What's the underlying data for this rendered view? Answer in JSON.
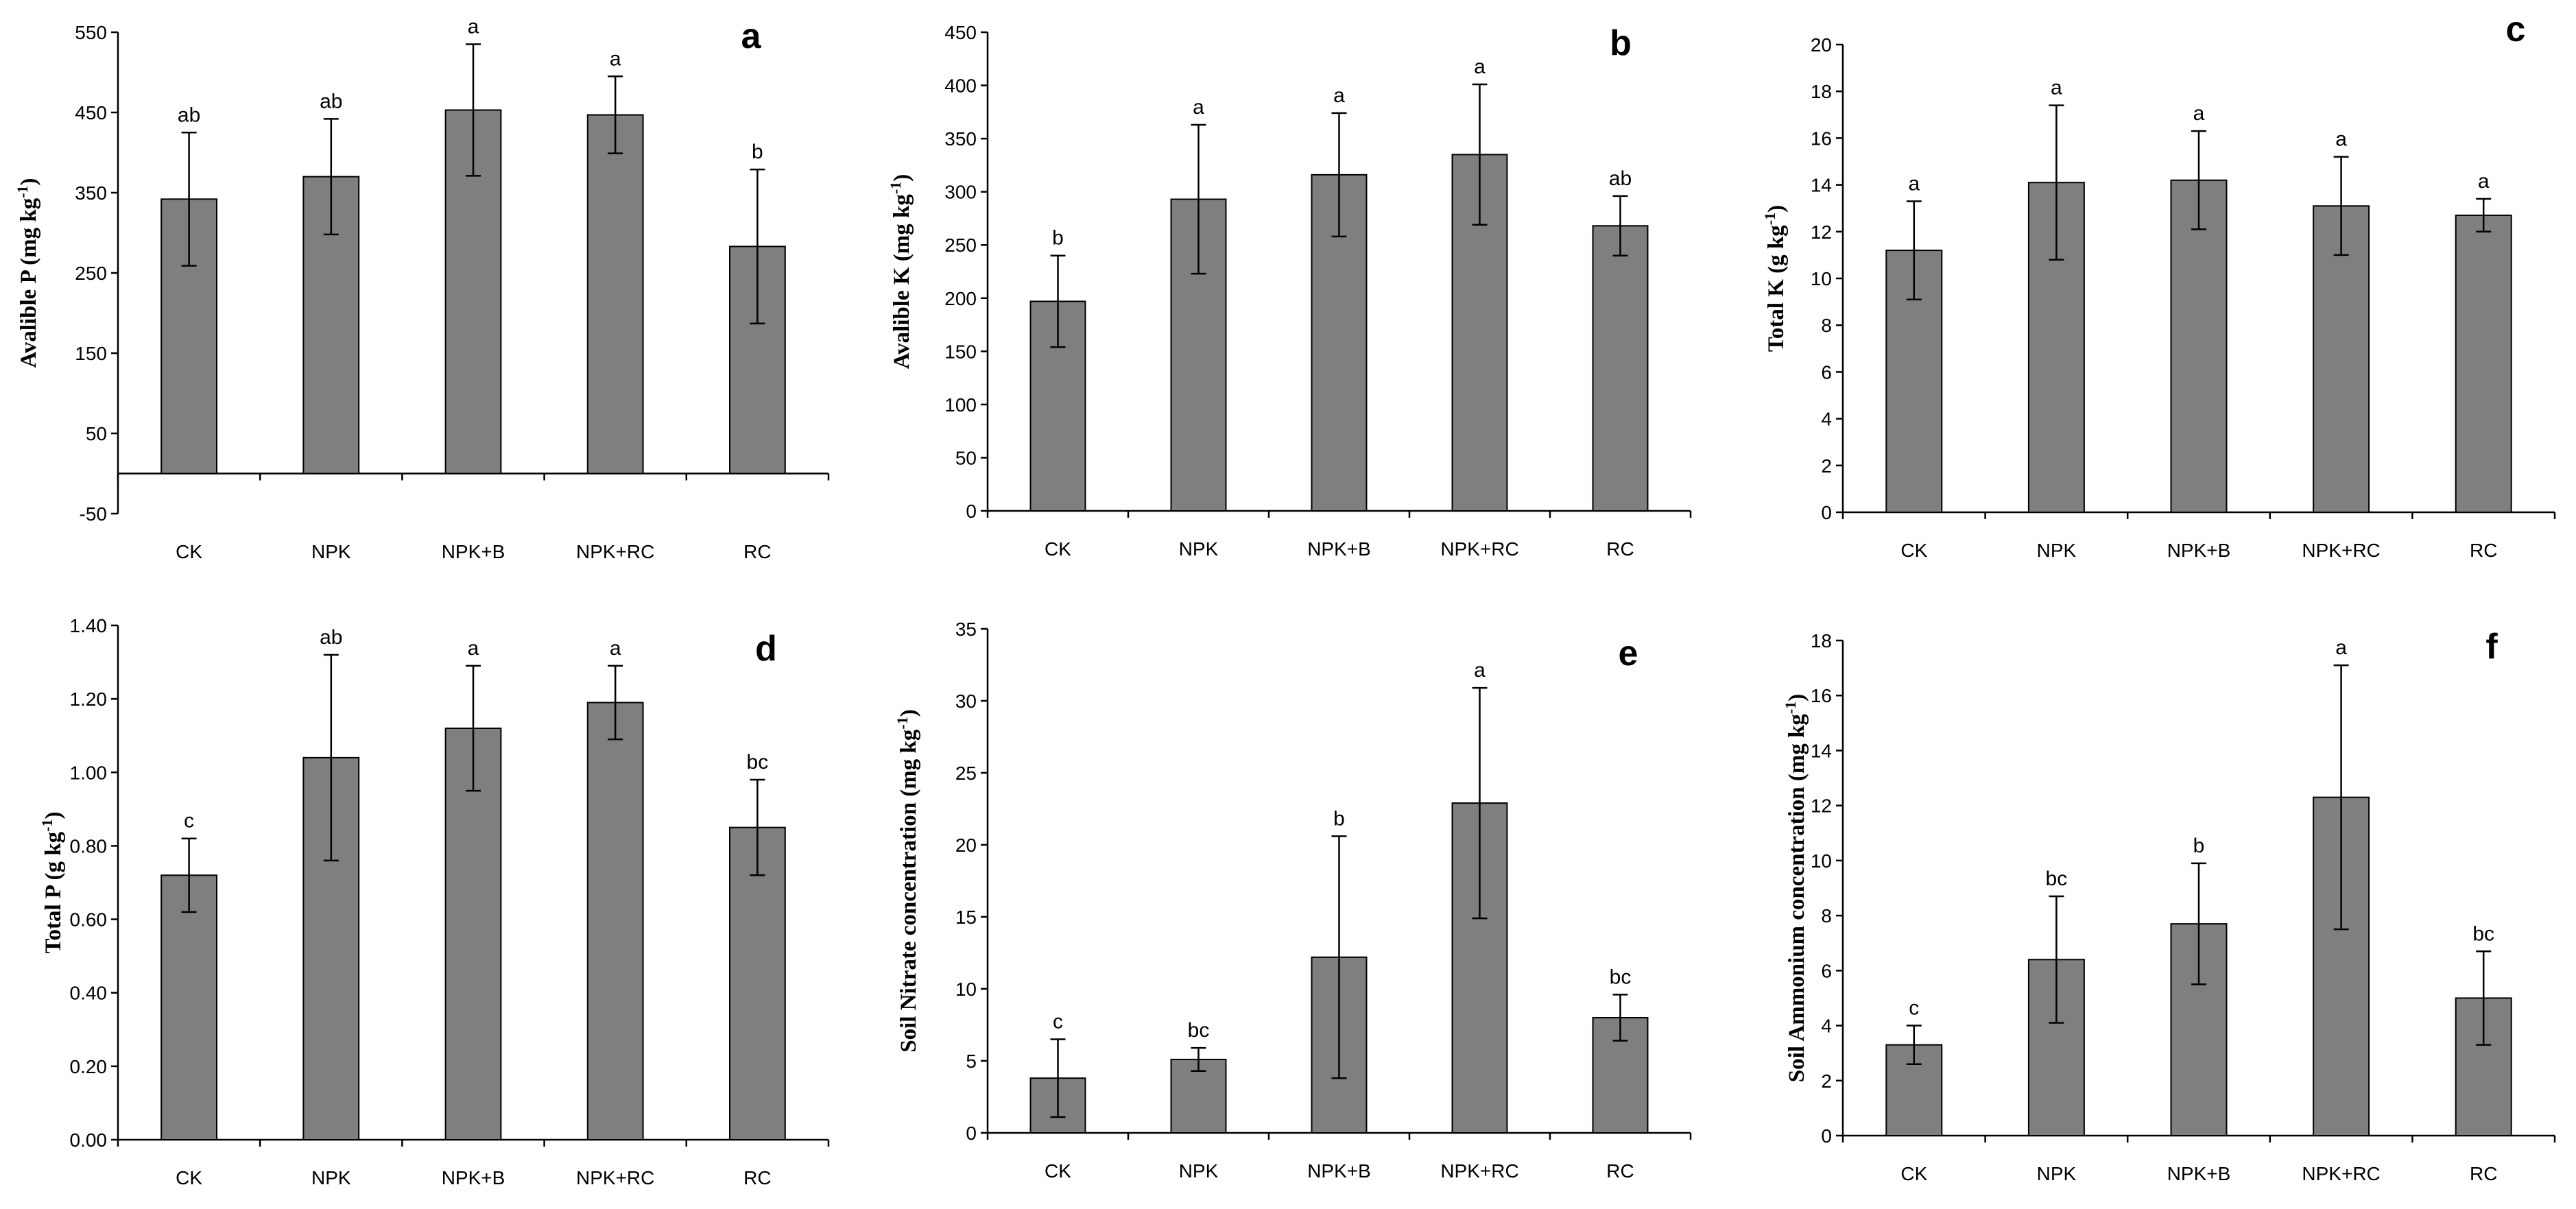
{
  "chart_data": [
    {
      "panel": "a",
      "type": "bar",
      "ylabel": "Avalible P (mg kg",
      "ylabel_sup": "-1",
      "ylabel_tail": ")",
      "categories": [
        "CK",
        "NPK",
        "NPK+B",
        "NPK+RC",
        "RC"
      ],
      "values": [
        342,
        370,
        453,
        447,
        283
      ],
      "errors": [
        83,
        72,
        82,
        48,
        96
      ],
      "letters": [
        "ab",
        "ab",
        "a",
        "a",
        "b"
      ],
      "ylim": [
        -50,
        550
      ],
      "ticks": [
        -50,
        50,
        150,
        250,
        350,
        450,
        550
      ],
      "tick_format": "0",
      "baseline": 0
    },
    {
      "panel": "b",
      "type": "bar",
      "ylabel": "Avalible K (mg kg",
      "ylabel_sup": "-1",
      "ylabel_tail": ")",
      "categories": [
        "CK",
        "NPK",
        "NPK+B",
        "NPK+RC",
        "RC"
      ],
      "values": [
        197,
        293,
        316,
        335,
        268
      ],
      "errors": [
        43,
        70,
        58,
        66,
        28
      ],
      "letters": [
        "b",
        "a",
        "a",
        "a",
        "ab"
      ],
      "ylim": [
        0,
        450
      ],
      "ticks": [
        0,
        50,
        100,
        150,
        200,
        250,
        300,
        350,
        400,
        450
      ],
      "tick_format": "0",
      "baseline": 0
    },
    {
      "panel": "c",
      "type": "bar",
      "ylabel": "Total K (g kg",
      "ylabel_sup": "-1",
      "ylabel_tail": ")",
      "categories": [
        "CK",
        "NPK",
        "NPK+B",
        "NPK+RC",
        "RC"
      ],
      "values": [
        11.2,
        14.1,
        14.2,
        13.1,
        12.7
      ],
      "errors": [
        2.1,
        3.3,
        2.1,
        2.1,
        0.7
      ],
      "letters": [
        "a",
        "a",
        "a",
        "a",
        "a"
      ],
      "ylim": [
        0,
        20
      ],
      "ticks": [
        0,
        2,
        4,
        6,
        8,
        10,
        12,
        14,
        16,
        18,
        20
      ],
      "tick_format": "0",
      "baseline": 0
    },
    {
      "panel": "d",
      "type": "bar",
      "ylabel": "Total P (g kg",
      "ylabel_sup": "-1",
      "ylabel_tail": ")",
      "categories": [
        "CK",
        "NPK",
        "NPK+B",
        "NPK+RC",
        "RC"
      ],
      "values": [
        0.72,
        1.04,
        1.12,
        1.19,
        0.85
      ],
      "errors": [
        0.1,
        0.28,
        0.17,
        0.1,
        0.13
      ],
      "letters": [
        "c",
        "ab",
        "a",
        "a",
        "bc"
      ],
      "ylim": [
        0,
        1.4
      ],
      "ticks": [
        0,
        0.2,
        0.4,
        0.6,
        0.8,
        1.0,
        1.2,
        1.4
      ],
      "tick_format": "2",
      "baseline": 0
    },
    {
      "panel": "e",
      "type": "bar",
      "ylabel": "Soil Nitrate concentration (mg kg",
      "ylabel_sup": "-1",
      "ylabel_tail": ")",
      "categories": [
        "CK",
        "NPK",
        "NPK+B",
        "NPK+RC",
        "RC"
      ],
      "values": [
        3.8,
        5.1,
        12.2,
        22.9,
        8.0
      ],
      "errors": [
        2.7,
        0.8,
        8.4,
        8.0,
        1.6
      ],
      "letters": [
        "c",
        "bc",
        "b",
        "a",
        "bc"
      ],
      "ylim": [
        0,
        35
      ],
      "ticks": [
        0,
        5,
        10,
        15,
        20,
        25,
        30,
        35
      ],
      "tick_format": "0",
      "baseline": 0
    },
    {
      "panel": "f",
      "type": "bar",
      "ylabel": "Soil Ammonium concentration (mg kg",
      "ylabel_sup": "-1",
      "ylabel_tail": ")",
      "categories": [
        "CK",
        "NPK",
        "NPK+B",
        "NPK+RC",
        "RC"
      ],
      "values": [
        3.3,
        6.4,
        7.7,
        12.3,
        5.0
      ],
      "errors": [
        0.7,
        2.3,
        2.2,
        4.8,
        1.7
      ],
      "letters": [
        "c",
        "bc",
        "b",
        "a",
        "bc"
      ],
      "ylim": [
        0,
        18
      ],
      "ticks": [
        0,
        2,
        4,
        6,
        8,
        10,
        12,
        14,
        16,
        18
      ],
      "tick_format": "0",
      "baseline": 0
    }
  ]
}
